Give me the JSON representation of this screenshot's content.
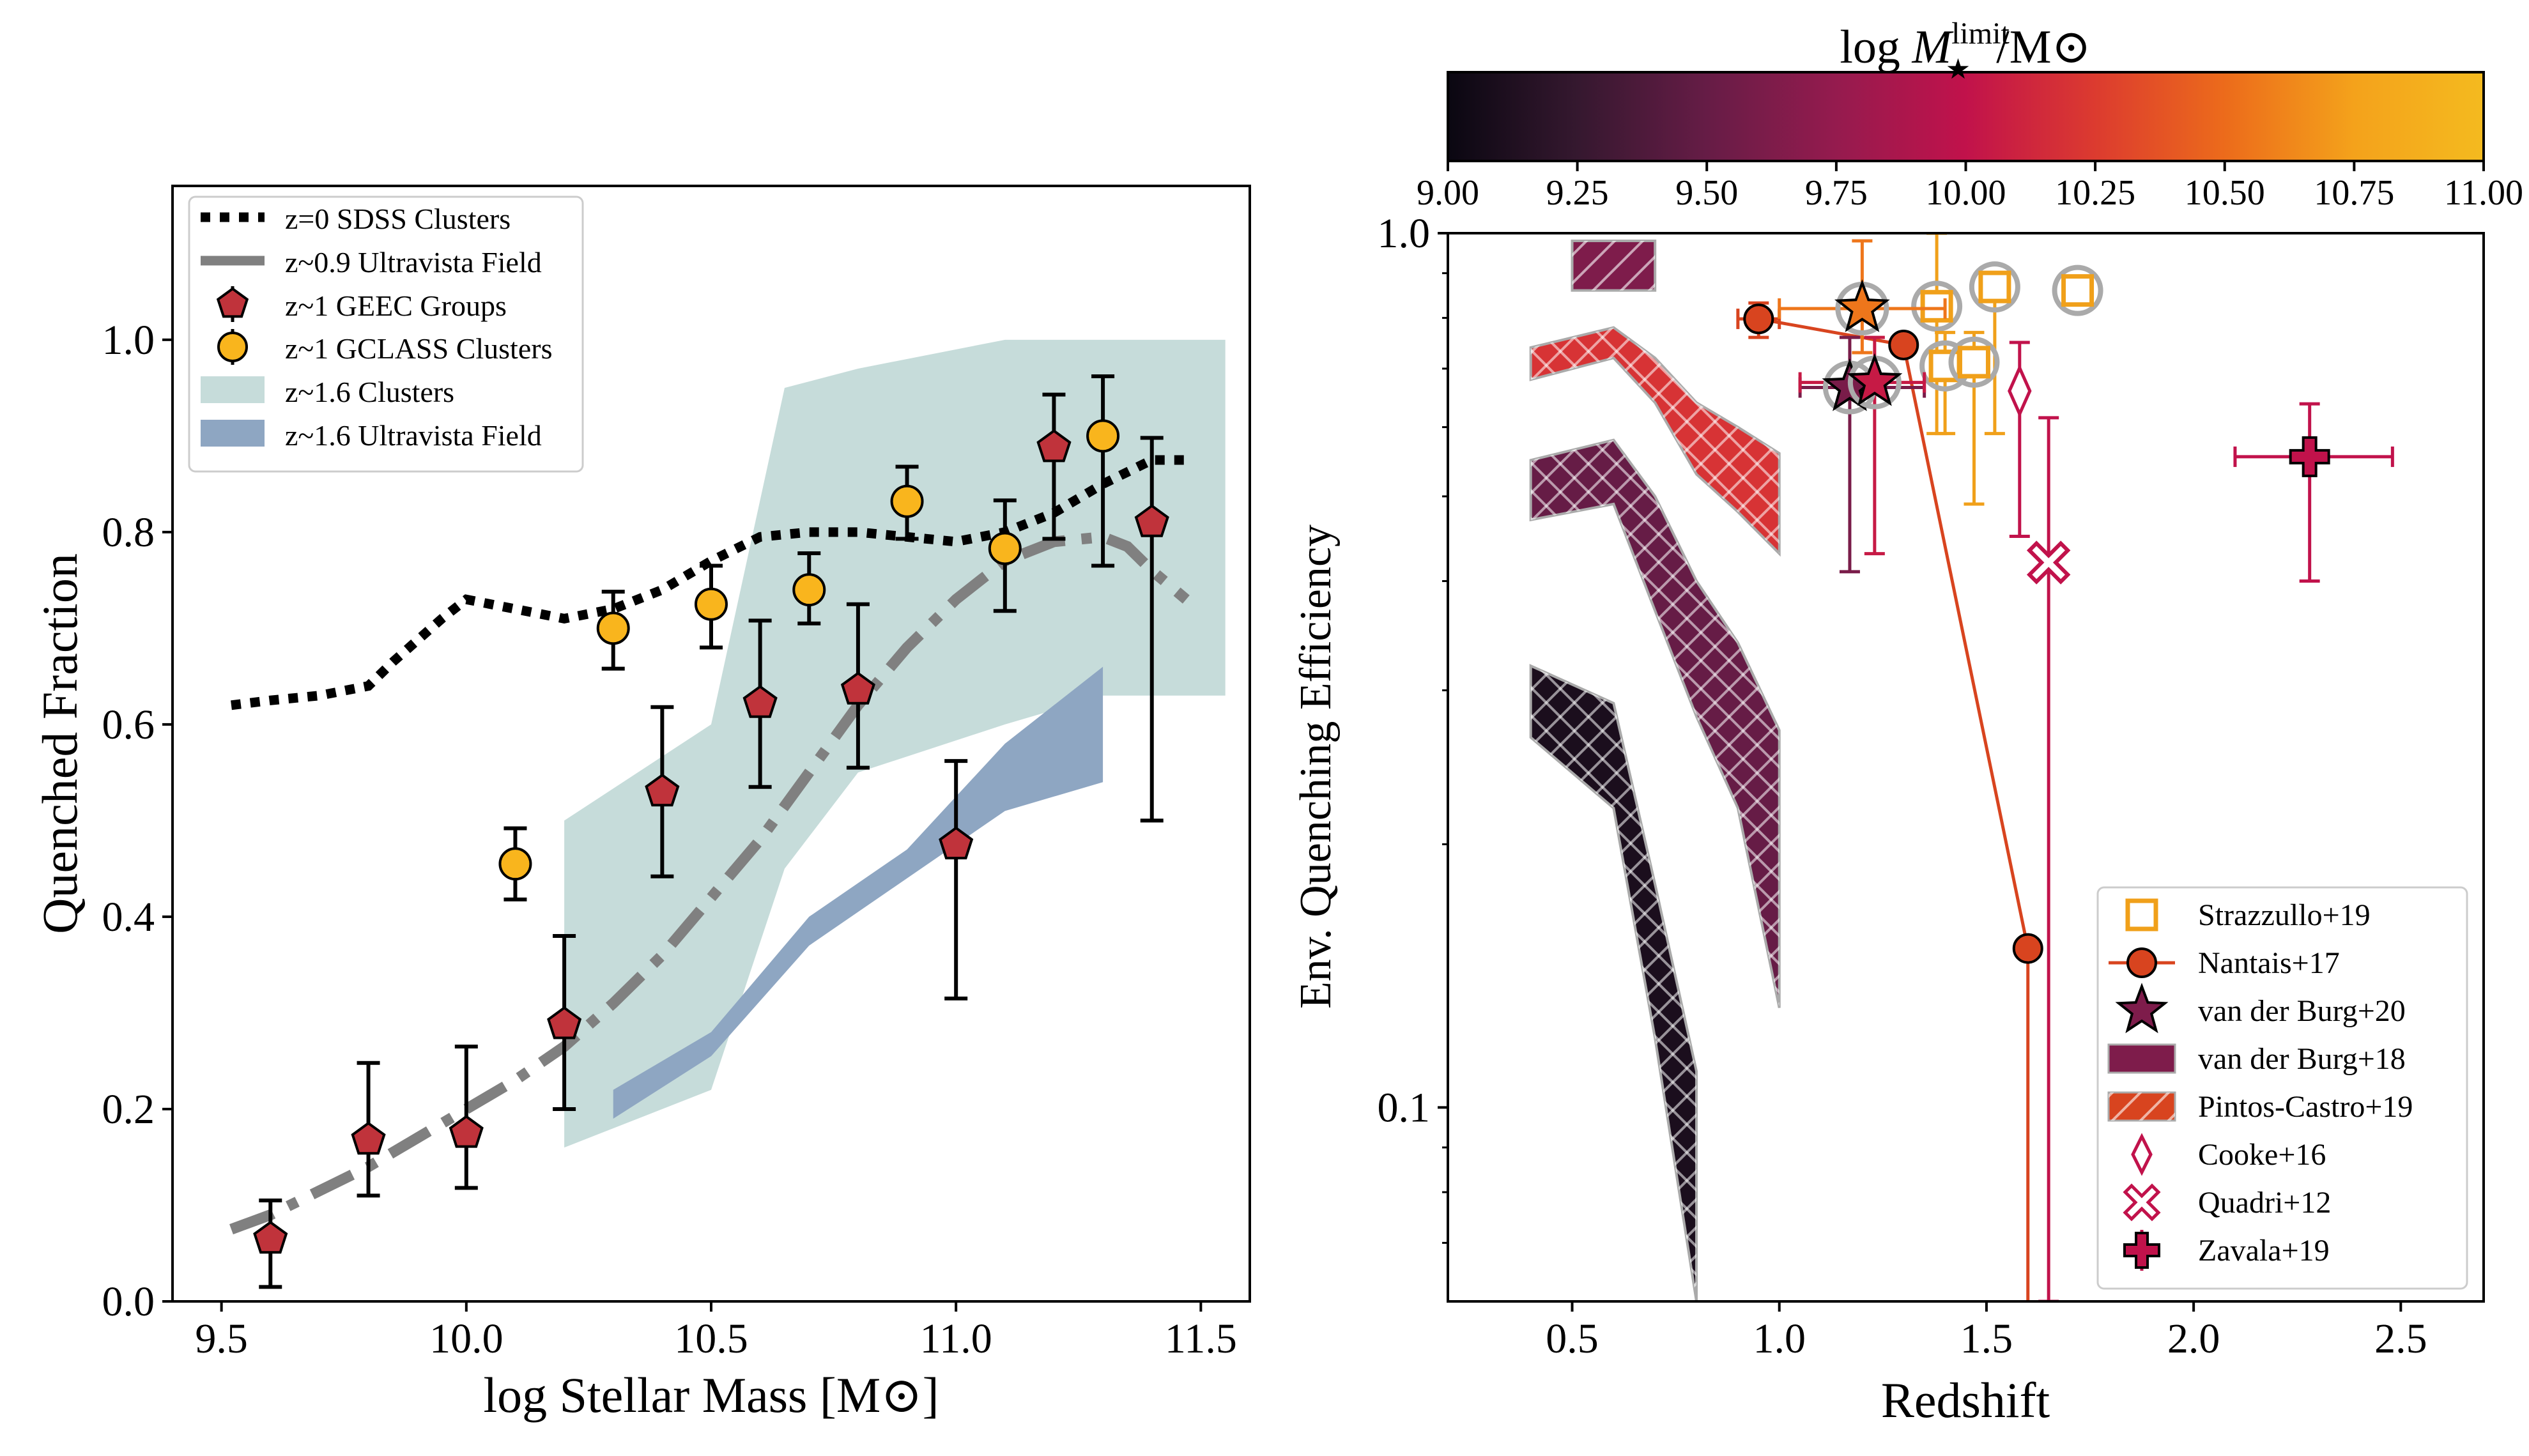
{
  "chart_data": [
    {
      "type": "scatter",
      "xlabel": "log Stellar Mass [M⊙]",
      "ylabel": "Quenched Fraction",
      "xlim": [
        9.4,
        11.6
      ],
      "ylim": [
        0.0,
        1.16
      ],
      "xticks": [
        "9.5",
        "10.0",
        "10.5",
        "11.0",
        "11.5"
      ],
      "xtick_values": [
        9.5,
        10.0,
        10.5,
        11.0,
        11.5
      ],
      "yticks": [
        "0.0",
        "0.2",
        "0.4",
        "0.6",
        "0.8",
        "1.0"
      ],
      "ytick_values": [
        0.0,
        0.2,
        0.4,
        0.6,
        0.8,
        1.0
      ],
      "legend_position": "top-left",
      "legend": [
        "z=0 SDSS Clusters",
        "z~0.9 Ultravista Field",
        "z~1 GEEC Groups",
        "z~1 GCLASS Clusters",
        "z~1.6 Clusters",
        "z~1.6 Ultravista Field"
      ],
      "colors": {
        "geec": "#c0333b",
        "gclass": "#f9b51d",
        "clusters16": "#c6dcda",
        "field16": "#8ea6c2",
        "sdss": "#000000",
        "ultravista": "#808080"
      },
      "series": [
        {
          "name": "z=0 SDSS Clusters",
          "kind": "line",
          "x": [
            9.52,
            9.6,
            9.7,
            9.8,
            9.85,
            9.95,
            10.0,
            10.1,
            10.2,
            10.3,
            10.4,
            10.5,
            10.6,
            10.7,
            10.8,
            10.9,
            11.0,
            11.1,
            11.2,
            11.3,
            11.4,
            11.47
          ],
          "y": [
            0.62,
            0.625,
            0.63,
            0.64,
            0.665,
            0.71,
            0.73,
            0.72,
            0.71,
            0.72,
            0.74,
            0.77,
            0.795,
            0.8,
            0.8,
            0.795,
            0.79,
            0.8,
            0.82,
            0.85,
            0.875,
            0.875
          ]
        },
        {
          "name": "z~0.9 Ultravista Field",
          "kind": "line",
          "x": [
            9.52,
            9.6,
            9.7,
            9.8,
            9.9,
            10.0,
            10.1,
            10.2,
            10.3,
            10.4,
            10.5,
            10.6,
            10.7,
            10.8,
            10.9,
            11.0,
            11.1,
            11.2,
            11.3,
            11.35,
            11.4,
            11.47
          ],
          "y": [
            0.075,
            0.09,
            0.115,
            0.14,
            0.17,
            0.2,
            0.23,
            0.265,
            0.31,
            0.36,
            0.42,
            0.48,
            0.55,
            0.62,
            0.68,
            0.73,
            0.77,
            0.79,
            0.795,
            0.785,
            0.76,
            0.73
          ]
        },
        {
          "name": "z~1 GEEC Groups",
          "kind": "points",
          "x": [
            9.6,
            9.8,
            10.0,
            10.2,
            10.4,
            10.6,
            10.8,
            11.0,
            11.2,
            11.4
          ],
          "y": [
            0.065,
            0.168,
            0.175,
            0.288,
            0.53,
            0.622,
            0.636,
            0.475,
            0.888,
            0.81
          ],
          "ylo": [
            0.015,
            0.11,
            0.118,
            0.2,
            0.442,
            0.535,
            0.555,
            0.315,
            0.793,
            0.5
          ],
          "yhi": [
            0.105,
            0.248,
            0.265,
            0.38,
            0.618,
            0.708,
            0.725,
            0.562,
            0.943,
            0.898
          ]
        },
        {
          "name": "z~1 GCLASS Clusters",
          "kind": "points",
          "x": [
            10.1,
            10.3,
            10.5,
            10.7,
            10.9,
            11.1,
            11.3
          ],
          "y": [
            0.455,
            0.7,
            0.725,
            0.74,
            0.832,
            0.783,
            0.9
          ],
          "ylo": [
            0.418,
            0.658,
            0.68,
            0.705,
            0.793,
            0.718,
            0.765
          ],
          "yhi": [
            0.492,
            0.738,
            0.765,
            0.778,
            0.868,
            0.833,
            0.962
          ]
        },
        {
          "name": "z~1.6 Clusters",
          "kind": "band",
          "x": [
            10.2,
            10.5,
            10.65,
            10.8,
            11.1,
            11.3,
            11.55
          ],
          "ylow": [
            0.16,
            0.22,
            0.45,
            0.55,
            0.6,
            0.63,
            0.63
          ],
          "yhigh": [
            0.5,
            0.6,
            0.95,
            0.97,
            1.0,
            1.0,
            1.0
          ]
        },
        {
          "name": "z~1.6 Ultravista Field",
          "kind": "band",
          "x": [
            10.3,
            10.5,
            10.7,
            10.9,
            11.1,
            11.3
          ],
          "ylow": [
            0.19,
            0.255,
            0.37,
            0.44,
            0.51,
            0.54
          ],
          "yhigh": [
            0.22,
            0.28,
            0.4,
            0.47,
            0.58,
            0.66
          ]
        }
      ]
    },
    {
      "type": "scatter",
      "xlabel": "Redshift",
      "ylabel": "Env. Quenching Efficiency",
      "yscale": "log",
      "xlim": [
        0.2,
        2.7
      ],
      "ylim": [
        0.06,
        1.0
      ],
      "xticks": [
        "0.5",
        "1.0",
        "1.5",
        "2.0",
        "2.5"
      ],
      "xtick_values": [
        0.5,
        1.0,
        1.5,
        2.0,
        2.5
      ],
      "yticks": [
        "1.0",
        "0.1"
      ],
      "ytick_values": [
        1.0,
        0.1
      ],
      "minor_yticks": [
        0.07,
        0.08,
        0.09,
        0.2,
        0.3,
        0.4,
        0.5,
        0.6,
        0.7,
        0.8,
        0.9
      ],
      "legend_position": "bottom-right",
      "legend": [
        "Strazzullo+19",
        "Nantais+17",
        "van der Burg+20",
        "van der Burg+18",
        "Pintos-Castro+19",
        "Cooke+16",
        "Quadri+12",
        "Zavala+19"
      ],
      "colorbar": {
        "label_prefix": "log",
        "label_symbol": "M",
        "label_sup": "limit",
        "label_sub": "★",
        "label_suffix": "/M⊙",
        "range": [
          9.0,
          11.0
        ],
        "ticks": [
          "9.00",
          "9.25",
          "9.50",
          "9.75",
          "10.00",
          "10.25",
          "10.50",
          "10.75",
          "11.00"
        ],
        "tick_values": [
          9.0,
          9.25,
          9.5,
          9.75,
          10.0,
          10.25,
          10.5,
          10.75,
          11.0
        ],
        "colors": [
          "#0a0711",
          "#35182f",
          "#661c46",
          "#951b4e",
          "#c1124b",
          "#dc3b2f",
          "#ec6b1b",
          "#f4a21b",
          "#f4ba1f"
        ]
      },
      "series": [
        {
          "name": "Strazzullo+19",
          "marker": "square-open",
          "color": "#f0a01a",
          "x": [
            1.38,
            1.52,
            1.72,
            1.4,
            1.47
          ],
          "y": [
            0.825,
            0.868,
            0.86,
            0.705,
            0.712
          ],
          "ylo": [
            0.59,
            0.59,
            0.86,
            0.59,
            0.49
          ],
          "yhi": [
            1.0,
            0.868,
            0.86,
            0.77,
            0.77
          ],
          "xerr": [
            0.0,
            0.0,
            0.0,
            0.0,
            0.0
          ]
        },
        {
          "name": "Nantais+17",
          "marker": "circle",
          "color": "#d8441f",
          "x": [
            0.95,
            1.3,
            1.6
          ],
          "y": [
            0.798,
            0.745,
            0.152
          ],
          "ylo": [
            0.76,
            0.74,
            0.06
          ],
          "yhi": [
            0.832,
            0.75,
            0.152
          ],
          "xlo": [
            0.9,
            1.3,
            1.6
          ],
          "xhi": [
            1.0,
            1.3,
            1.6
          ]
        },
        {
          "name": "van der Burg+20",
          "marker": "star",
          "x": [
            1.2,
            1.17,
            1.23
          ],
          "y": [
            0.82,
            0.666,
            0.675
          ],
          "color_values": [
            10.55,
            9.6,
            10.05
          ],
          "ylo": [
            0.73,
            0.41,
            0.43
          ],
          "yhi": [
            0.98,
            0.76,
            0.76
          ],
          "xlo": [
            1.0,
            1.05,
            1.05
          ],
          "xhi": [
            1.4,
            1.35,
            1.35
          ]
        },
        {
          "name": "van der Burg+18",
          "marker": "box",
          "color": "#7e1c4b",
          "x_range": [
            0.5,
            0.7
          ],
          "y_range": [
            0.86,
            0.98
          ]
        },
        {
          "name": "Pintos-Castro+19",
          "marker": "band",
          "color": "#d8441f",
          "note": "hatched redshift bands for three mass limits",
          "bands": [
            {
              "color_value": 10.2,
              "x": [
                0.4,
                0.6,
                0.7,
                0.8,
                0.9,
                1.0
              ],
              "ylow": [
                0.68,
                0.72,
                0.64,
                0.53,
                0.48,
                0.43
              ],
              "yhigh": [
                0.74,
                0.78,
                0.72,
                0.64,
                0.6,
                0.56
              ]
            },
            {
              "color_value": 9.5,
              "x": [
                0.4,
                0.6,
                0.7,
                0.8,
                0.9,
                1.0
              ],
              "ylow": [
                0.47,
                0.49,
                0.37,
                0.28,
                0.22,
                0.13
              ],
              "yhigh": [
                0.55,
                0.58,
                0.5,
                0.4,
                0.34,
                0.27
              ]
            },
            {
              "color_value": 9.1,
              "x": [
                0.4,
                0.6,
                0.7,
                0.8
              ],
              "ylow": [
                0.265,
                0.22,
                0.12,
                0.06
              ],
              "yhigh": [
                0.32,
                0.29,
                0.18,
                0.11
              ]
            }
          ]
        },
        {
          "name": "Cooke+16",
          "marker": "diamond-open",
          "color": "#c1124b",
          "x": [
            1.58
          ],
          "y": [
            0.66
          ],
          "ylo": [
            0.45
          ],
          "yhi": [
            0.75
          ]
        },
        {
          "name": "Quadri+12",
          "marker": "x-open",
          "color": "#c1124b",
          "x": [
            1.65
          ],
          "y": [
            0.42
          ],
          "ylo": [
            0.06
          ],
          "yhi": [
            0.615
          ]
        },
        {
          "name": "Zavala+19",
          "marker": "plus",
          "color": "#c1124b",
          "x": [
            2.28
          ],
          "y": [
            0.555
          ],
          "ylo": [
            0.4
          ],
          "yhi": [
            0.638
          ],
          "xlo": [
            2.1
          ],
          "xhi": [
            2.48
          ]
        }
      ]
    }
  ]
}
